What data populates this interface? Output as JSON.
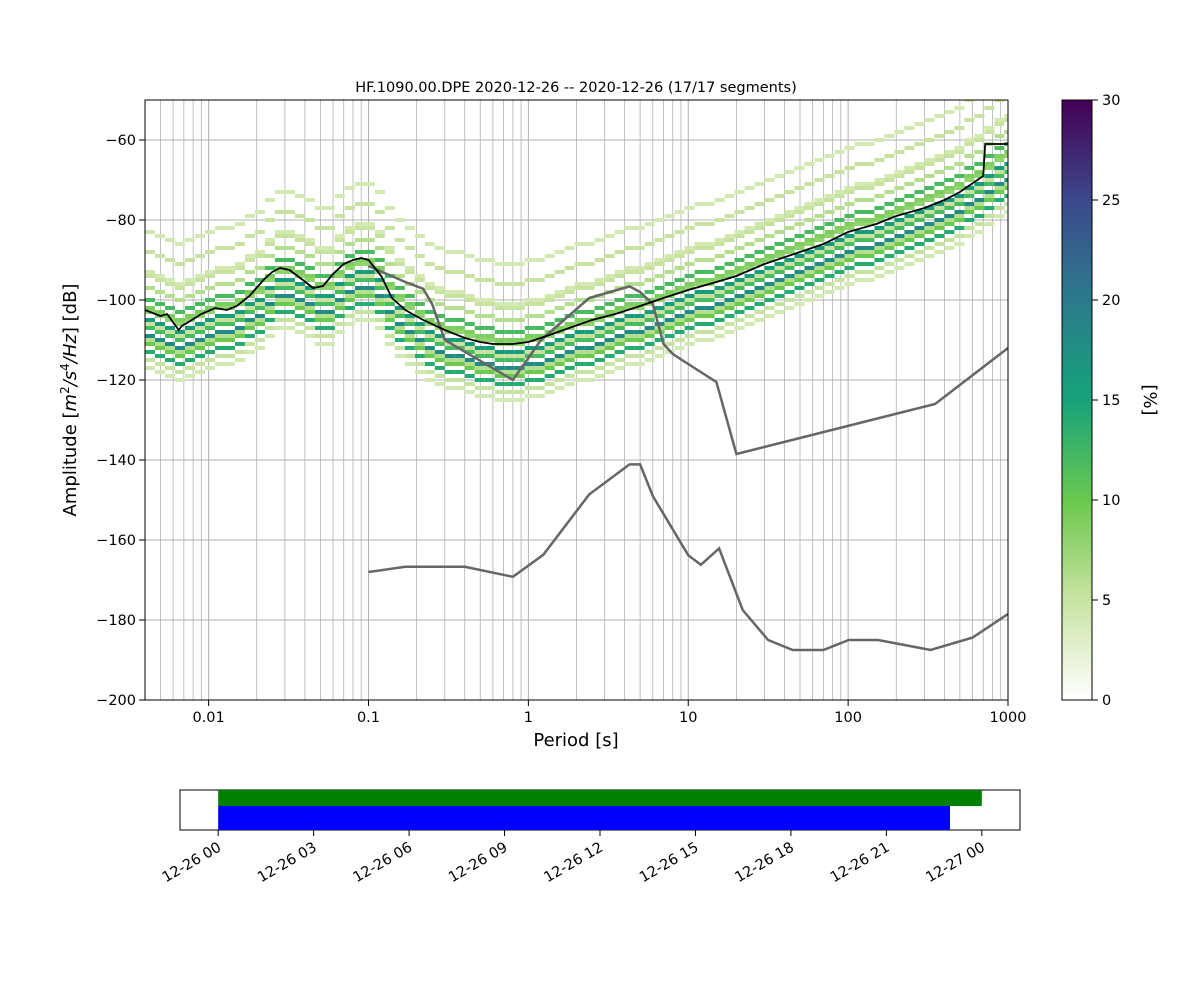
{
  "chart_data": [
    {
      "type": "heatmap",
      "title": "HF.1090.00.DPE   2020-12-26 -- 2020-12-26  (17/17 segments)",
      "xlabel": "Period [s]",
      "ylabel_prefix": "Amplitude [",
      "ylabel_math": [
        "m",
        "2",
        "/s",
        "4",
        "/Hz"
      ],
      "ylabel_suffix": "] [dB]",
      "x_scale": "log",
      "xlim": [
        0.004,
        1000
      ],
      "ylim": [
        -200,
        -50
      ],
      "grid": true,
      "x_ticks": [
        0.01,
        0.1,
        1,
        10,
        100,
        1000
      ],
      "x_tick_labels": [
        "0.01",
        "0.1",
        "1",
        "10",
        "100",
        "1000"
      ],
      "y_ticks": [
        -200,
        -180,
        -160,
        -140,
        -120,
        -100,
        -80,
        -60
      ],
      "y_tick_labels": [
        "−200",
        "−180",
        "−160",
        "−140",
        "−120",
        "−100",
        "−80",
        "−60"
      ],
      "colorbar": {
        "label": "[%]",
        "range": [
          0,
          30
        ],
        "ticks": [
          0,
          5,
          10,
          15,
          20,
          25,
          30
        ],
        "tick_labels": [
          "0",
          "5",
          "10",
          "15",
          "20",
          "25",
          "30"
        ],
        "colormap_stops": [
          "#ffffff",
          "#c7e39f",
          "#6cc94f",
          "#16a37a",
          "#2b7a8c",
          "#3c4a8c",
          "#440154"
        ]
      },
      "psd_curves": [
        {
          "period_s": 0.0045,
          "offset_db": 20,
          "pct": 4
        },
        {
          "period_s": 0.0045,
          "offset_db": 15,
          "pct": 5
        },
        {
          "period_s": 0.0045,
          "offset_db": 10,
          "pct": 4
        },
        {
          "period_s": 0.0045,
          "offset_db": 6,
          "pct": 6
        },
        {
          "period_s": 0.0045,
          "offset_db": 3,
          "pct": 12
        },
        {
          "period_s": 0.0045,
          "offset_db": 0,
          "pct": 8
        },
        {
          "period_s": 0.0045,
          "offset_db": -2,
          "pct": 16
        },
        {
          "period_s": 0.0045,
          "offset_db": -4,
          "pct": 12
        },
        {
          "period_s": 0.0045,
          "offset_db": -6,
          "pct": 18
        },
        {
          "period_s": 0.0045,
          "offset_db": -8,
          "pct": 10
        },
        {
          "period_s": 0.0045,
          "offset_db": -10,
          "pct": 14
        },
        {
          "period_s": 0.0045,
          "offset_db": -12,
          "pct": 5
        },
        {
          "period_s": 0.0045,
          "offset_db": -14,
          "pct": 4
        },
        {
          "period_s": 0.0045,
          "offset_db": 9,
          "pct": 5
        },
        {
          "period_s": 0.0045,
          "offset_db": -7,
          "pct": 6
        },
        {
          "period_s": 0.0045,
          "offset_db": 1,
          "pct": 9
        },
        {
          "period_s": 0.0045,
          "offset_db": -3,
          "pct": 5
        }
      ],
      "psd_shape": {
        "period_s": [
          0.004,
          0.006,
          0.008,
          0.012,
          0.018,
          0.028,
          0.04,
          0.05,
          0.07,
          0.09,
          0.11,
          0.15,
          0.25,
          0.4,
          0.7,
          1.0,
          1.5,
          3,
          6,
          10,
          20,
          50,
          100,
          200,
          500,
          1000
        ],
        "amplitude_db": [
          -103,
          -106,
          -104,
          -102,
          -99,
          -92,
          -95,
          -98,
          -92,
          -90,
          -93,
          -101,
          -107,
          -109,
          -111,
          -110,
          -108,
          -104,
          -100,
          -97,
          -93,
          -86,
          -82,
          -78,
          -71,
          -63
        ]
      },
      "mode_curve": {
        "period_s": [
          0.004,
          0.005,
          0.0055,
          0.0065,
          0.0068,
          0.0075,
          0.009,
          0.011,
          0.013,
          0.015,
          0.018,
          0.022,
          0.025,
          0.028,
          0.032,
          0.036,
          0.045,
          0.052,
          0.06,
          0.07,
          0.08,
          0.09,
          0.1,
          0.12,
          0.14,
          0.17,
          0.22,
          0.3,
          0.4,
          0.5,
          0.6,
          0.8,
          1.0,
          1.3,
          1.8,
          2.5,
          3.5,
          5,
          7,
          10,
          15,
          20,
          30,
          50,
          70,
          100,
          150,
          200,
          300,
          400,
          500,
          700,
          720,
          1000
        ],
        "amplitude_db": [
          -102.5,
          -104,
          -103.5,
          -107.5,
          -106.5,
          -105.5,
          -103.5,
          -102,
          -102.5,
          -101.5,
          -99,
          -95,
          -93,
          -92,
          -92.5,
          -94,
          -97,
          -96.5,
          -93.5,
          -91,
          -90,
          -89.5,
          -90,
          -94,
          -99.5,
          -102.5,
          -105,
          -107.5,
          -109.5,
          -110.5,
          -111,
          -111,
          -110.5,
          -109,
          -107,
          -105,
          -103.5,
          -101.5,
          -99.5,
          -97.5,
          -95.5,
          -94,
          -91,
          -88,
          -86,
          -83,
          -81,
          -79,
          -77,
          -75,
          -73,
          -69,
          -61,
          -61
        ]
      },
      "model_curves": [
        {
          "period_s": [
            0.1,
            0.17,
            0.22,
            0.25,
            0.3,
            0.8,
            1.2,
            2.4,
            4.3,
            5.0,
            6.0,
            7.0,
            8.0,
            10.0,
            15.0,
            20.0,
            350.0,
            1000.0
          ],
          "amplitude_db": [
            -91.5,
            -95.5,
            -97.2,
            -101,
            -110,
            -120,
            -110,
            -99.5,
            -96.6,
            -98,
            -101,
            -111,
            -113.5,
            -116,
            -120.5,
            -138.5,
            -126,
            -112
          ]
        },
        {
          "period_s": [
            0.1,
            0.17,
            0.4,
            0.8,
            1.24,
            2.4,
            4.3,
            5.0,
            6.0,
            10.0,
            12.0,
            15.6,
            21.9,
            31.6,
            45.0,
            70.0,
            101.0,
            154.0,
            328.0,
            600.0,
            1000.0
          ],
          "amplitude_db": [
            -168,
            -166.7,
            -166.7,
            -169.2,
            -163.7,
            -148.6,
            -141.1,
            -141.1,
            -149.0,
            -163.8,
            -166.2,
            -162.1,
            -177.5,
            -185.0,
            -187.5,
            -187.5,
            -185.0,
            -185.0,
            -187.5,
            -184.4,
            -178.5
          ]
        }
      ]
    },
    {
      "type": "timeline",
      "x_tick_labels": [
        "12-26 00",
        "12-26 03",
        "12-26 06",
        "12-26 09",
        "12-26 12",
        "12-26 15",
        "12-26 18",
        "12-26 21",
        "12-27 00"
      ],
      "x_range_hours": [
        -1.2,
        25.2
      ],
      "bars": [
        {
          "color": "#008000",
          "start_hour": 0.0,
          "end_hour": 24.0
        },
        {
          "color": "#0000ff",
          "start_hour": 0.0,
          "end_hour": 23.0
        }
      ]
    }
  ]
}
